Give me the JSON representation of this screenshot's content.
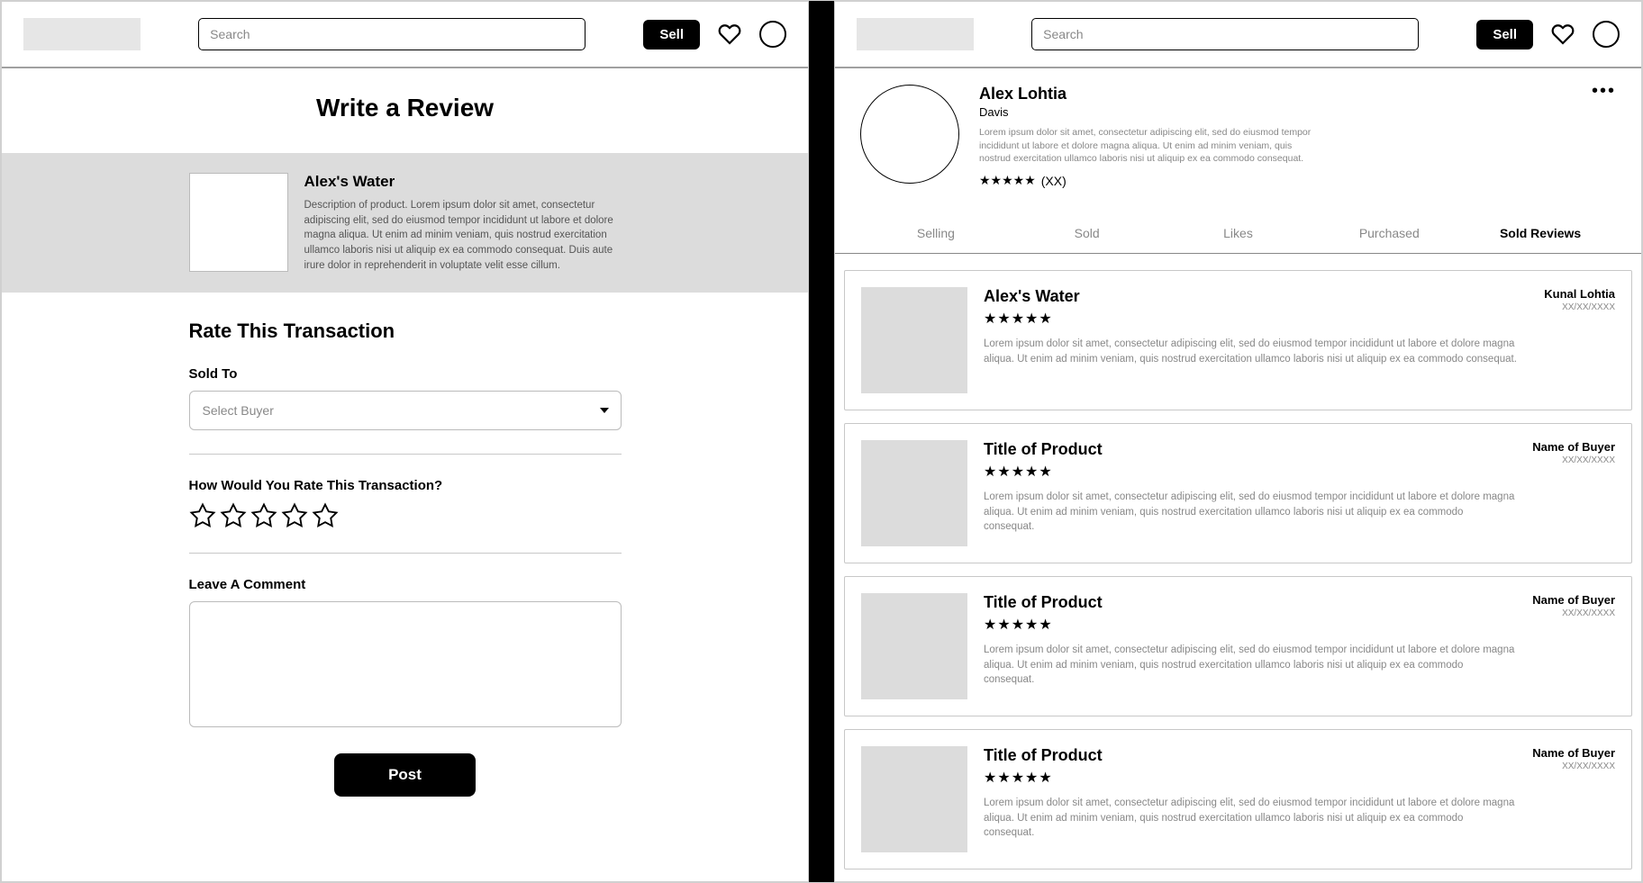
{
  "header": {
    "search_placeholder": "Search",
    "sell_label": "Sell"
  },
  "left": {
    "page_title": "Write a Review",
    "product": {
      "title": "Alex's Water",
      "description": "Description of product. Lorem ipsum dolor sit amet, consectetur adipiscing elit, sed do eiusmod tempor incididunt ut labore et dolore magna aliqua. Ut enim ad minim veniam, quis nostrud exercitation ullamco laboris nisi ut aliquip ex ea commodo consequat. Duis aute irure dolor in reprehenderit in voluptate velit esse cillum."
    },
    "form": {
      "rate_heading": "Rate This Transaction",
      "sold_to_label": "Sold To",
      "select_placeholder": "Select Buyer",
      "how_rate_label": "How Would You Rate This Transaction?",
      "comment_label": "Leave A Comment",
      "post_label": "Post",
      "star_count": 5
    }
  },
  "right": {
    "profile": {
      "name": "Alex Lohtia",
      "location": "Davis",
      "bio": "Lorem ipsum dolor sit amet, consectetur adipiscing elit, sed do eiusmod tempor incididunt ut labore et dolore magna aliqua. Ut enim ad minim veniam, quis nostrud exercitation ullamco laboris nisi ut aliquip ex ea commodo consequat.",
      "rating_count": "(XX)"
    },
    "tabs": [
      {
        "label": "Selling",
        "active": false
      },
      {
        "label": "Sold",
        "active": false
      },
      {
        "label": "Likes",
        "active": false
      },
      {
        "label": "Purchased",
        "active": false
      },
      {
        "label": "Sold Reviews",
        "active": true
      }
    ],
    "reviews": [
      {
        "title": "Alex's Water",
        "buyer": "Kunal Lohtia",
        "date": "XX/XX/XXXX",
        "text": "Lorem ipsum dolor sit amet, consectetur adipiscing elit, sed do eiusmod tempor incididunt ut labore et dolore magna aliqua. Ut enim ad minim veniam, quis nostrud exercitation ullamco laboris nisi ut aliquip ex ea commodo consequat."
      },
      {
        "title": "Title of Product",
        "buyer": "Name of Buyer",
        "date": "XX/XX/XXXX",
        "text": "Lorem ipsum dolor sit amet, consectetur adipiscing elit, sed do eiusmod tempor incididunt ut labore et dolore magna aliqua. Ut enim ad minim veniam, quis nostrud exercitation ullamco laboris nisi ut aliquip ex ea commodo consequat."
      },
      {
        "title": "Title of Product",
        "buyer": "Name of Buyer",
        "date": "XX/XX/XXXX",
        "text": "Lorem ipsum dolor sit amet, consectetur adipiscing elit, sed do eiusmod tempor incididunt ut labore et dolore magna aliqua. Ut enim ad minim veniam, quis nostrud exercitation ullamco laboris nisi ut aliquip ex ea commodo consequat."
      },
      {
        "title": "Title of Product",
        "buyer": "Name of Buyer",
        "date": "XX/XX/XXXX",
        "text": "Lorem ipsum dolor sit amet, consectetur adipiscing elit, sed do eiusmod tempor incididunt ut labore et dolore magna aliqua. Ut enim ad minim veniam, quis nostrud exercitation ullamco laboris nisi ut aliquip ex ea commodo consequat."
      }
    ]
  }
}
